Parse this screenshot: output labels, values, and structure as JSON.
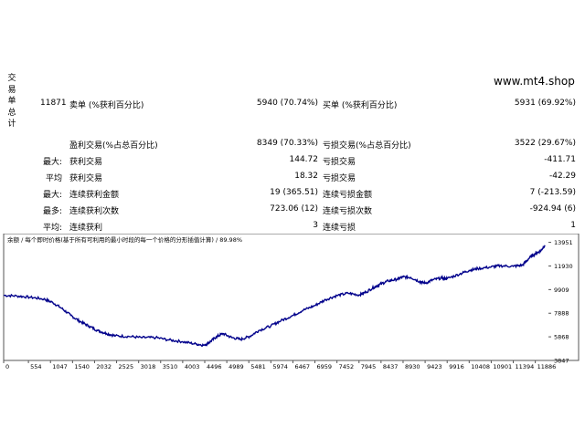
{
  "side_label": [
    "交",
    "易",
    "单",
    "总",
    "计"
  ],
  "site": "www.mt4.shop",
  "stats": {
    "total_trades": "11871",
    "short_label": "卖单 (%获利百分比)",
    "short_value": "5940 (70.74%)",
    "long_label": "买单 (%获利百分比)",
    "long_value": "5931 (69.92%)",
    "profit_trades_label": "盈利交易(%占总百分比)",
    "profit_trades_value": "8349 (70.33%)",
    "loss_trades_label": "亏损交易(%占总百分比)",
    "loss_trades_value": "3522 (29.67%)",
    "largest_prefix": "最大:",
    "largest_profit_label": "获利交易",
    "largest_profit_value": "144.72",
    "largest_loss_label": "亏损交易",
    "largest_loss_value": "-411.71",
    "average_prefix": "平均",
    "average_profit_label": "获利交易",
    "average_profit_value": "18.32",
    "average_loss_label": "亏损交易",
    "average_loss_value": "-42.29",
    "max_prefix": "最大:",
    "max_consec_wins_label": "连续获利金额",
    "max_consec_wins_value": "19 (365.51)",
    "max_consec_losses_label": "连续亏损金额",
    "max_consec_losses_value": "7 (-213.59)",
    "maximal_prefix": "最多:",
    "maximal_consec_profit_label": "连续获利次数",
    "maximal_consec_profit_value": "723.06 (12)",
    "maximal_consec_loss_label": "连续亏损次数",
    "maximal_consec_loss_value": "-924.94 (6)",
    "avg_prefix": "平均:",
    "avg_consec_wins_label": "连续获利",
    "avg_consec_wins_value": "3",
    "avg_consec_losses_label": "连续亏损",
    "avg_consec_losses_value": "1"
  },
  "chart_data": {
    "type": "line",
    "title": "余额 / 每个即时价格(基于所有可利用的最小时段的每一个价格的分形插值计算) / 89.98%",
    "x_ticks": [
      0,
      554,
      1047,
      1540,
      2032,
      2525,
      3018,
      3510,
      4003,
      4496,
      4989,
      5481,
      5974,
      6467,
      6959,
      7452,
      7945,
      8437,
      8930,
      9423,
      9916,
      10408,
      10901,
      11394,
      11886
    ],
    "y_ticks": [
      3847,
      5868,
      7888,
      9909,
      11930,
      13951
    ],
    "xlim": [
      0,
      12180
    ],
    "ylim": [
      3847,
      14700
    ],
    "line_color": "#00008b",
    "series": [
      {
        "x": [
          0,
          300,
          600,
          900,
          1100,
          1300,
          1500,
          1700,
          1900,
          2100,
          2300,
          2500,
          2800,
          3100,
          3400,
          3700,
          4000,
          4300,
          4496,
          4600,
          4750,
          4900,
          5100,
          5300,
          5500,
          5700,
          5974,
          6200,
          6467,
          6700,
          6959,
          7200,
          7452,
          7700,
          7945,
          8100,
          8300,
          8437,
          8600,
          8800,
          8930,
          9100,
          9300,
          9423,
          9600,
          9800,
          9916,
          10200,
          10408,
          10600,
          10901,
          11100,
          11394,
          11600,
          11750,
          11886,
          12000,
          12100
        ],
        "values": [
          9420,
          9360,
          9250,
          9100,
          8800,
          8300,
          7700,
          7200,
          6800,
          6400,
          6150,
          5950,
          5900,
          5800,
          5800,
          5600,
          5450,
          5250,
          5150,
          5400,
          5850,
          6150,
          5800,
          5650,
          5900,
          6400,
          6800,
          7250,
          7700,
          8150,
          8550,
          9050,
          9400,
          9600,
          9450,
          9700,
          10150,
          10400,
          10650,
          10800,
          11000,
          10950,
          10600,
          10450,
          10750,
          10900,
          10850,
          11250,
          11550,
          11700,
          11850,
          11950,
          11900,
          12000,
          12600,
          13000,
          13200,
          13700
        ]
      }
    ]
  }
}
